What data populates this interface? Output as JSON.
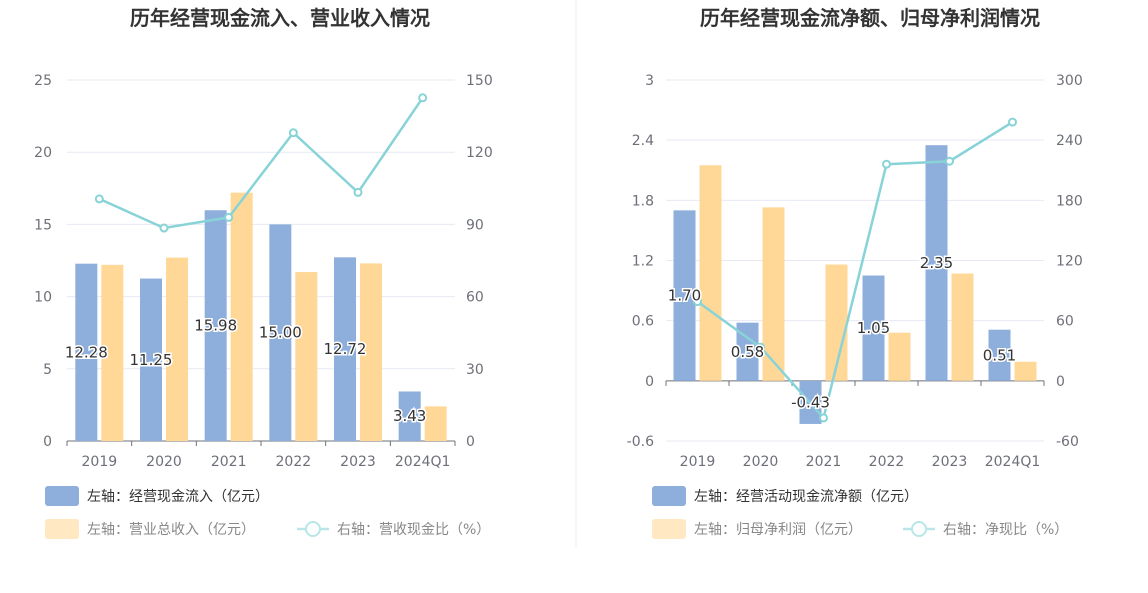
{
  "chart_data": [
    {
      "type": "bar",
      "title": "历年经营现金流入、营业收入情况",
      "categories": [
        "2019",
        "2020",
        "2021",
        "2022",
        "2023",
        "2024Q1"
      ],
      "left_axis": {
        "ylim": [
          0,
          25
        ],
        "ticks": [
          "0",
          "5",
          "10",
          "15",
          "20",
          "25"
        ]
      },
      "right_axis": {
        "ylim": [
          0,
          150
        ],
        "ticks": [
          "0",
          "30",
          "60",
          "90",
          "120",
          "150"
        ]
      },
      "series": [
        {
          "name": "左轴：经营现金流入（亿元）",
          "type": "bar",
          "axis": "left",
          "color": "#8eaedc",
          "values": [
            12.28,
            11.25,
            15.98,
            15.0,
            12.72,
            3.43
          ],
          "labels": [
            "12.28",
            "11.25",
            "15.98",
            "15.00",
            "12.72",
            "3.43"
          ]
        },
        {
          "name": "左轴：营业总收入（亿元）",
          "type": "bar",
          "axis": "left",
          "color": "#ffd898",
          "values": [
            12.2,
            12.7,
            17.2,
            11.7,
            12.3,
            2.4
          ]
        },
        {
          "name": "右轴：营收现金比（%）",
          "type": "line",
          "axis": "right",
          "color": "#88d3d8",
          "values": [
            100.6,
            88.5,
            92.9,
            128.1,
            103.3,
            142.6
          ]
        }
      ],
      "grid": true,
      "legend_position": "bottom-left"
    },
    {
      "type": "bar",
      "title": "历年经营现金流净额、归母净利润情况",
      "categories": [
        "2019",
        "2020",
        "2021",
        "2022",
        "2023",
        "2024Q1"
      ],
      "left_axis": {
        "ylim": [
          -0.6,
          3
        ],
        "ticks": [
          "-0.6",
          "0",
          "0.6",
          "1.2",
          "1.8",
          "2.4",
          "3"
        ]
      },
      "right_axis": {
        "ylim": [
          -60,
          300
        ],
        "ticks": [
          "-60",
          "0",
          "60",
          "120",
          "180",
          "240",
          "300"
        ]
      },
      "series": [
        {
          "name": "左轴：经营活动现金流净额（亿元）",
          "type": "bar",
          "axis": "left",
          "color": "#8eaedc",
          "values": [
            1.7,
            0.58,
            -0.43,
            1.05,
            2.35,
            0.51
          ],
          "labels": [
            "1.70",
            "0.58",
            "-0.43",
            "1.05",
            "2.35",
            "0.51"
          ]
        },
        {
          "name": "左轴：归母净利润（亿元）",
          "type": "bar",
          "axis": "left",
          "color": "#ffd898",
          "values": [
            2.15,
            1.73,
            1.16,
            0.48,
            1.07,
            0.19
          ]
        },
        {
          "name": "右轴：净现比（%）",
          "type": "line",
          "axis": "right",
          "color": "#88d3d8",
          "values": [
            79,
            33.5,
            -37,
            216,
            219,
            258
          ]
        }
      ],
      "grid": true,
      "legend_position": "bottom-left"
    }
  ]
}
